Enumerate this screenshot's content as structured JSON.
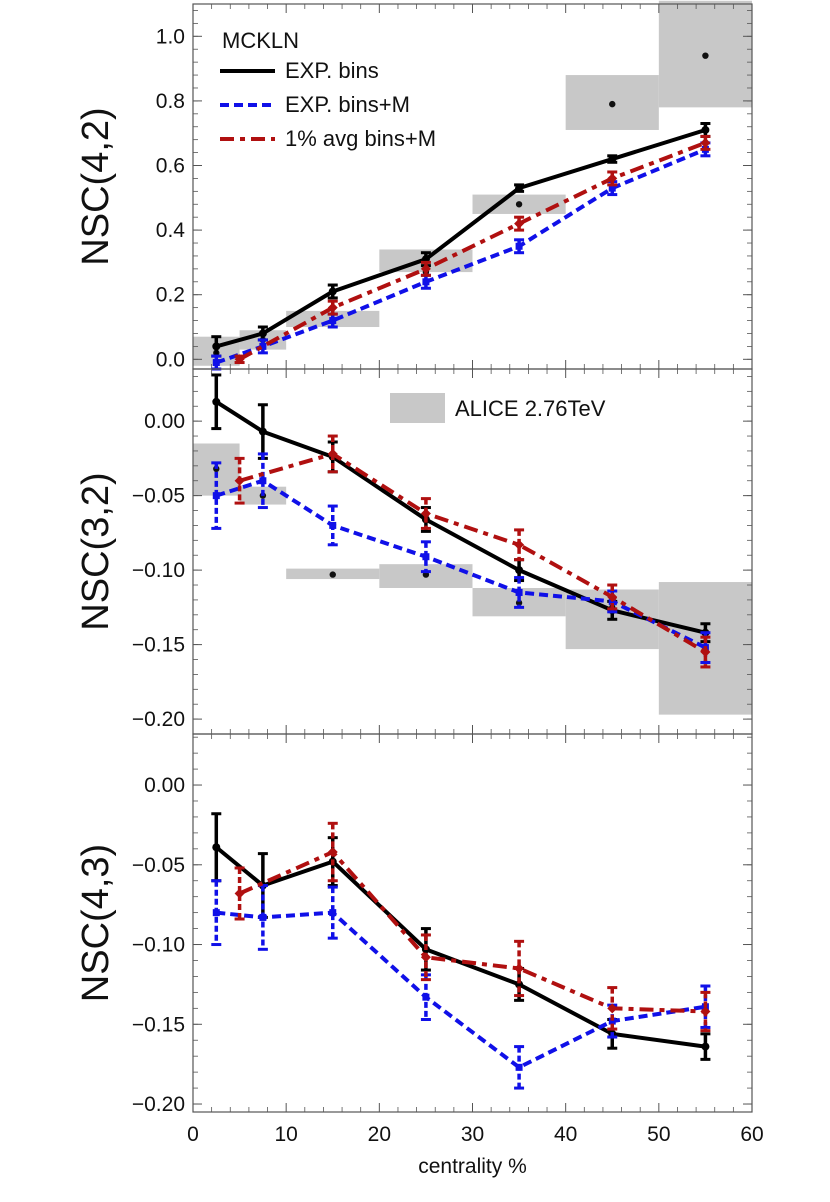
{
  "colors": {
    "exp_bins": "#000000",
    "exp_bins_m": "#1010e8",
    "avg_bins_m": "#b01010",
    "alice_box": "#c8c8c8",
    "frame": "#555555"
  },
  "chart_data": [
    {
      "type": "line",
      "id": "nsc42",
      "ylabel": "NSC(4,2)",
      "xlabel": "centrality %",
      "xlim": [
        0,
        60
      ],
      "ylim": [
        -0.03,
        1.1
      ],
      "yticks": [
        0.0,
        0.2,
        0.4,
        0.6,
        0.8,
        1.0
      ],
      "ytick_labels": [
        "0.0",
        "0.2",
        "0.4",
        "0.6",
        "0.8",
        "1.0"
      ],
      "legend_title": "MCKLN",
      "series": [
        {
          "name": "EXP. bins",
          "style": "solid",
          "color_key": "exp_bins",
          "marker": "circle",
          "x": [
            2.5,
            7.5,
            15,
            25,
            35,
            45,
            55
          ],
          "y": [
            0.04,
            0.08,
            0.21,
            0.31,
            0.53,
            0.62,
            0.71
          ],
          "err": [
            0.03,
            0.02,
            0.02,
            0.02,
            0.01,
            0.01,
            0.02
          ]
        },
        {
          "name": "EXP. bins+M",
          "style": "dotted",
          "color_key": "exp_bins_m",
          "marker": "square",
          "x": [
            2.5,
            7.5,
            15,
            25,
            35,
            45,
            55
          ],
          "y": [
            -0.01,
            0.04,
            0.12,
            0.24,
            0.35,
            0.53,
            0.65
          ],
          "err": [
            0.02,
            0.02,
            0.02,
            0.02,
            0.02,
            0.02,
            0.02
          ]
        },
        {
          "name": "1% avg bins+M",
          "style": "dashdot",
          "color_key": "avg_bins_m",
          "marker": "diamond",
          "x": [
            5,
            15,
            25,
            35,
            45,
            55
          ],
          "y": [
            0.0,
            0.16,
            0.28,
            0.42,
            0.56,
            0.67
          ],
          "err": [
            0.01,
            0.02,
            0.02,
            0.02,
            0.02,
            0.02
          ]
        }
      ],
      "alice": [
        {
          "x0": 0,
          "x1": 5,
          "y": 0.02,
          "lo": -0.02,
          "hi": 0.07,
          "dot": true
        },
        {
          "x0": 5,
          "x1": 10,
          "y": 0.06,
          "lo": 0.03,
          "hi": 0.09,
          "dot": true
        },
        {
          "x0": 10,
          "x1": 20,
          "y": 0.12,
          "lo": 0.1,
          "hi": 0.15,
          "dot": true
        },
        {
          "x0": 20,
          "x1": 30,
          "y": 0.27,
          "lo": 0.27,
          "hi": 0.34,
          "dot": true
        },
        {
          "x0": 30,
          "x1": 40,
          "y": 0.48,
          "lo": 0.45,
          "hi": 0.51,
          "dot": true
        },
        {
          "x0": 40,
          "x1": 50,
          "y": 0.79,
          "lo": 0.71,
          "hi": 0.88,
          "dot": true
        },
        {
          "x0": 50,
          "x1": 60,
          "y": 0.94,
          "lo": 0.78,
          "hi": 1.11,
          "dot": true
        }
      ]
    },
    {
      "type": "line",
      "id": "nsc32",
      "ylabel": "NSC(3,2)",
      "xlabel": "centrality %",
      "xlim": [
        0,
        60
      ],
      "ylim": [
        -0.21,
        0.035
      ],
      "yticks": [
        0.0,
        -0.05,
        -0.1,
        -0.15,
        -0.2
      ],
      "ytick_labels": [
        "0.00",
        "−0.05",
        "−0.10",
        "−0.15",
        "−0.20"
      ],
      "legend_alice": "ALICE 2.76TeV",
      "series": [
        {
          "name": "EXP. bins",
          "style": "solid",
          "color_key": "exp_bins",
          "marker": "circle",
          "x": [
            2.5,
            7.5,
            15,
            25,
            35,
            45,
            55
          ],
          "y": [
            0.013,
            -0.007,
            -0.024,
            -0.066,
            -0.1,
            -0.127,
            -0.142
          ],
          "err": [
            0.018,
            0.018,
            0.01,
            0.008,
            0.007,
            0.006,
            0.006
          ]
        },
        {
          "name": "EXP. bins+M",
          "style": "dotted",
          "color_key": "exp_bins_m",
          "marker": "square",
          "x": [
            2.5,
            7.5,
            15,
            25,
            35,
            45,
            55
          ],
          "y": [
            -0.05,
            -0.04,
            -0.07,
            -0.091,
            -0.115,
            -0.121,
            -0.152
          ],
          "err": [
            0.022,
            0.018,
            0.013,
            0.01,
            0.01,
            0.007,
            0.01
          ]
        },
        {
          "name": "1% avg bins+M",
          "style": "dashdot",
          "color_key": "avg_bins_m",
          "marker": "diamond",
          "x": [
            5,
            15,
            25,
            35,
            45,
            55
          ],
          "y": [
            -0.04,
            -0.022,
            -0.062,
            -0.083,
            -0.118,
            -0.155
          ],
          "err": [
            0.015,
            0.012,
            0.01,
            0.01,
            0.008,
            0.01
          ]
        }
      ],
      "alice": [
        {
          "x0": 0,
          "x1": 5,
          "y": -0.032,
          "lo": -0.05,
          "hi": -0.015,
          "dot": true
        },
        {
          "x0": 5,
          "x1": 10,
          "y": -0.05,
          "lo": -0.056,
          "hi": -0.044,
          "dot": true
        },
        {
          "x0": 10,
          "x1": 20,
          "y": -0.103,
          "lo": -0.106,
          "hi": -0.099,
          "dot": true
        },
        {
          "x0": 20,
          "x1": 30,
          "y": -0.103,
          "lo": -0.112,
          "hi": -0.096,
          "dot": true
        },
        {
          "x0": 30,
          "x1": 40,
          "y": -0.122,
          "lo": -0.131,
          "hi": -0.112,
          "dot": true
        },
        {
          "x0": 40,
          "x1": 50,
          "y": -0.125,
          "lo": -0.153,
          "hi": -0.113,
          "dot": true
        },
        {
          "x0": 50,
          "x1": 60,
          "y": -0.152,
          "lo": -0.197,
          "hi": -0.108,
          "dot": true
        }
      ]
    },
    {
      "type": "line",
      "id": "nsc43",
      "ylabel": "NSC(4,3)",
      "xlabel": "centrality %",
      "xlim": [
        0,
        60
      ],
      "ylim": [
        -0.205,
        0.032
      ],
      "yticks": [
        0.0,
        -0.05,
        -0.1,
        -0.15,
        -0.2
      ],
      "ytick_labels": [
        "0.00",
        "−0.05",
        "−0.10",
        "−0.15",
        "−0.20"
      ],
      "xticks": [
        0,
        10,
        20,
        30,
        40,
        50,
        60
      ],
      "xtick_labels": [
        "0",
        "10",
        "20",
        "30",
        "40",
        "50",
        "60"
      ],
      "series": [
        {
          "name": "EXP. bins",
          "style": "solid",
          "color_key": "exp_bins",
          "marker": "circle",
          "x": [
            2.5,
            7.5,
            15,
            25,
            35,
            45,
            55
          ],
          "y": [
            -0.039,
            -0.063,
            -0.048,
            -0.103,
            -0.125,
            -0.156,
            -0.164
          ],
          "err": [
            0.021,
            0.02,
            0.015,
            0.013,
            0.01,
            0.009,
            0.008
          ]
        },
        {
          "name": "EXP. bins+M",
          "style": "dotted",
          "color_key": "exp_bins_m",
          "marker": "square",
          "x": [
            2.5,
            7.5,
            15,
            25,
            35,
            45,
            55
          ],
          "y": [
            -0.08,
            -0.083,
            -0.08,
            -0.133,
            -0.177,
            -0.148,
            -0.139
          ],
          "err": [
            0.02,
            0.02,
            0.016,
            0.014,
            0.013,
            0.01,
            0.013
          ]
        },
        {
          "name": "1% avg bins+M",
          "style": "dashdot",
          "color_key": "avg_bins_m",
          "marker": "diamond",
          "x": [
            5,
            15,
            25,
            35,
            45,
            55
          ],
          "y": [
            -0.068,
            -0.042,
            -0.108,
            -0.115,
            -0.14,
            -0.142
          ],
          "err": [
            0.016,
            0.018,
            0.014,
            0.017,
            0.013,
            0.012
          ]
        }
      ]
    }
  ]
}
